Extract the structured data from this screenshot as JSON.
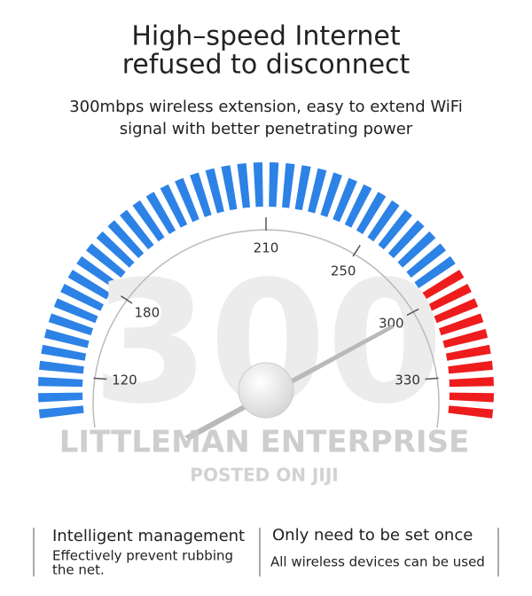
{
  "header": {
    "title_lines": [
      "High–speed Internet",
      "refused to disconnect"
    ],
    "subtitle_lines": [
      "300mbps wireless extension, easy to extend WiFi",
      "signal with better penetrating power"
    ]
  },
  "gauge": {
    "big_number": "300",
    "labels": [
      "120",
      "180",
      "210",
      "250",
      "300",
      "330"
    ]
  },
  "watermark": {
    "line1": "LITTLEMAN ENTERPRISE",
    "line2": "POSTED ON JIJI"
  },
  "features": [
    {
      "title": "Intelligent management",
      "lines": [
        "Effectively prevent rubbing",
        "the net."
      ]
    },
    {
      "title": "Only need to be set once",
      "lines": [
        "All wireless devices can be used"
      ]
    }
  ]
}
